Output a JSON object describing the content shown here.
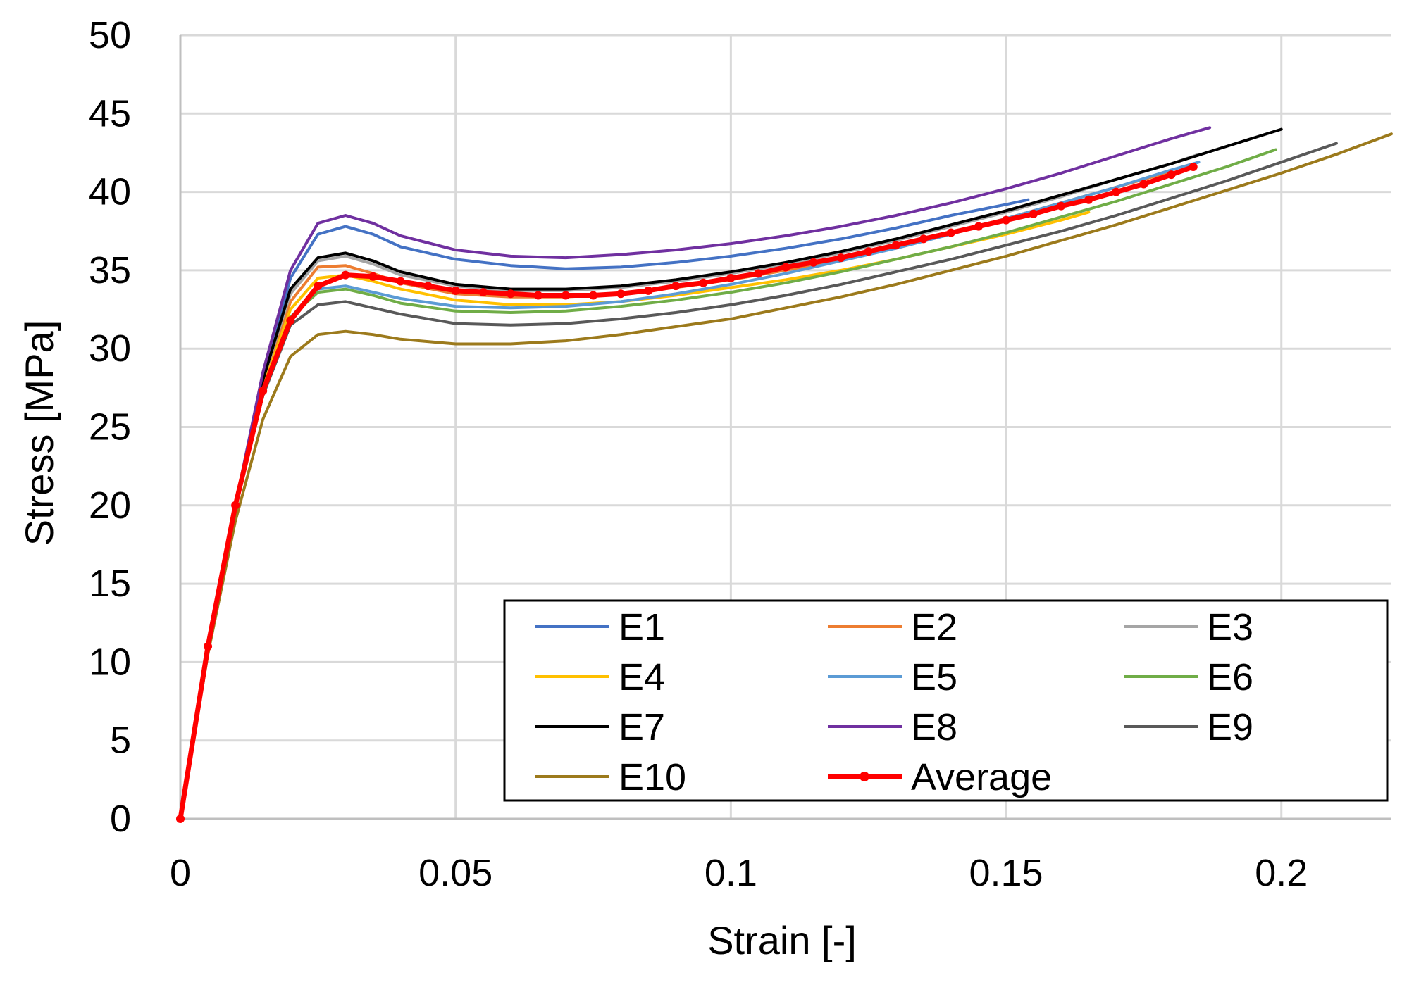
{
  "chart_data": {
    "type": "line",
    "title": "",
    "xlabel": "Strain [-]",
    "ylabel": "Stress [MPa]",
    "xlim": [
      0,
      0.22
    ],
    "ylim": [
      0,
      50
    ],
    "x_ticks": [
      0,
      0.05,
      0.1,
      0.15,
      0.2
    ],
    "x_tick_labels": [
      "0",
      "0.05",
      "0.1",
      "0.15",
      "0.2"
    ],
    "y_ticks": [
      0,
      5,
      10,
      15,
      20,
      25,
      30,
      35,
      40,
      45,
      50
    ],
    "y_tick_labels": [
      "0",
      "5",
      "10",
      "15",
      "20",
      "25",
      "30",
      "35",
      "40",
      "45",
      "50"
    ],
    "grid": true,
    "legend_position": "bottom-right",
    "series": [
      {
        "name": "E1",
        "color": "#4472C4",
        "markers": false,
        "x": [
          0,
          0.005,
          0.01,
          0.015,
          0.02,
          0.025,
          0.03,
          0.035,
          0.04,
          0.05,
          0.06,
          0.07,
          0.08,
          0.09,
          0.1,
          0.11,
          0.12,
          0.13,
          0.14,
          0.15,
          0.154
        ],
        "y": [
          0,
          11,
          20,
          28,
          34.5,
          37.3,
          37.8,
          37.3,
          36.5,
          35.7,
          35.3,
          35.1,
          35.2,
          35.5,
          35.9,
          36.4,
          37.0,
          37.7,
          38.5,
          39.2,
          39.5
        ]
      },
      {
        "name": "E2",
        "color": "#ED7D31",
        "markers": false,
        "x": [
          0,
          0.005,
          0.01,
          0.015,
          0.02,
          0.025,
          0.03,
          0.035,
          0.04,
          0.05,
          0.06,
          0.07,
          0.08,
          0.09,
          0.1,
          0.11,
          0.12,
          0.13,
          0.14,
          0.15,
          0.16,
          0.17,
          0.18
        ],
        "y": [
          0,
          11,
          20,
          27.5,
          33,
          35.2,
          35.3,
          34.8,
          34.2,
          33.5,
          33.3,
          33.3,
          33.5,
          33.9,
          34.4,
          35.0,
          35.7,
          36.5,
          37.4,
          38.3,
          39.3,
          40.3,
          41.3
        ]
      },
      {
        "name": "E3",
        "color": "#A5A5A5",
        "markers": false,
        "x": [
          0,
          0.005,
          0.01,
          0.015,
          0.02,
          0.025,
          0.03,
          0.035,
          0.04,
          0.05,
          0.06,
          0.07,
          0.08,
          0.09,
          0.1,
          0.11,
          0.12,
          0.13,
          0.14,
          0.15,
          0.16,
          0.17,
          0.18,
          0.185
        ],
        "y": [
          0,
          11,
          20,
          28,
          33.5,
          35.6,
          35.9,
          35.4,
          34.7,
          34.0,
          33.7,
          33.7,
          33.9,
          34.3,
          34.8,
          35.4,
          36.1,
          36.9,
          37.8,
          38.7,
          39.7,
          40.8,
          41.8,
          42.4
        ]
      },
      {
        "name": "E4",
        "color": "#FFC000",
        "markers": false,
        "x": [
          0,
          0.005,
          0.01,
          0.015,
          0.02,
          0.025,
          0.03,
          0.035,
          0.04,
          0.05,
          0.06,
          0.07,
          0.08,
          0.09,
          0.1,
          0.11,
          0.12,
          0.13,
          0.14,
          0.15,
          0.16,
          0.165
        ],
        "y": [
          0,
          11,
          20,
          27.5,
          32.5,
          34.5,
          34.7,
          34.3,
          33.8,
          33.1,
          32.8,
          32.8,
          33.0,
          33.4,
          33.9,
          34.4,
          35.0,
          35.7,
          36.5,
          37.3,
          38.2,
          38.7
        ]
      },
      {
        "name": "E5",
        "color": "#5B9BD5",
        "markers": false,
        "x": [
          0,
          0.005,
          0.01,
          0.015,
          0.02,
          0.025,
          0.03,
          0.035,
          0.04,
          0.05,
          0.06,
          0.07,
          0.08,
          0.09,
          0.1,
          0.11,
          0.12,
          0.13,
          0.14,
          0.15,
          0.16,
          0.17,
          0.18,
          0.185
        ],
        "y": [
          0,
          11,
          20,
          27,
          32,
          33.8,
          34.0,
          33.6,
          33.2,
          32.7,
          32.6,
          32.7,
          33.0,
          33.5,
          34.1,
          34.8,
          35.6,
          36.4,
          37.3,
          38.3,
          39.3,
          40.3,
          41.4,
          41.9
        ]
      },
      {
        "name": "E6",
        "color": "#70AD47",
        "markers": false,
        "x": [
          0,
          0.005,
          0.01,
          0.015,
          0.02,
          0.025,
          0.03,
          0.035,
          0.04,
          0.05,
          0.06,
          0.07,
          0.08,
          0.09,
          0.1,
          0.11,
          0.12,
          0.13,
          0.14,
          0.15,
          0.16,
          0.17,
          0.18,
          0.19,
          0.199
        ],
        "y": [
          0,
          11,
          20,
          27,
          32,
          33.6,
          33.8,
          33.4,
          32.9,
          32.4,
          32.3,
          32.4,
          32.7,
          33.1,
          33.6,
          34.2,
          34.9,
          35.7,
          36.5,
          37.4,
          38.4,
          39.4,
          40.5,
          41.6,
          42.7
        ]
      },
      {
        "name": "E7",
        "color": "#000000",
        "markers": false,
        "x": [
          0,
          0.005,
          0.01,
          0.015,
          0.02,
          0.025,
          0.03,
          0.035,
          0.04,
          0.05,
          0.06,
          0.07,
          0.08,
          0.09,
          0.1,
          0.11,
          0.12,
          0.13,
          0.14,
          0.15,
          0.16,
          0.17,
          0.18,
          0.19,
          0.2
        ],
        "y": [
          0,
          11,
          20,
          28,
          33.8,
          35.8,
          36.1,
          35.6,
          34.9,
          34.1,
          33.8,
          33.8,
          34.0,
          34.4,
          34.9,
          35.5,
          36.2,
          37.0,
          37.9,
          38.8,
          39.8,
          40.8,
          41.8,
          42.9,
          44.0
        ]
      },
      {
        "name": "E8",
        "color": "#7030A0",
        "markers": false,
        "x": [
          0,
          0.005,
          0.01,
          0.015,
          0.02,
          0.025,
          0.03,
          0.035,
          0.04,
          0.05,
          0.06,
          0.07,
          0.08,
          0.09,
          0.1,
          0.11,
          0.12,
          0.13,
          0.14,
          0.15,
          0.16,
          0.17,
          0.18,
          0.187
        ],
        "y": [
          0,
          11,
          20,
          28.5,
          35,
          38.0,
          38.5,
          38.0,
          37.2,
          36.3,
          35.9,
          35.8,
          36.0,
          36.3,
          36.7,
          37.2,
          37.8,
          38.5,
          39.3,
          40.2,
          41.2,
          42.3,
          43.4,
          44.1
        ]
      },
      {
        "name": "E9",
        "color": "#595959",
        "markers": false,
        "x": [
          0,
          0.005,
          0.01,
          0.015,
          0.02,
          0.025,
          0.03,
          0.035,
          0.04,
          0.05,
          0.06,
          0.07,
          0.08,
          0.09,
          0.1,
          0.11,
          0.12,
          0.13,
          0.14,
          0.15,
          0.16,
          0.17,
          0.18,
          0.19,
          0.2,
          0.21
        ],
        "y": [
          0,
          11,
          20,
          27,
          31.5,
          32.8,
          33.0,
          32.6,
          32.2,
          31.6,
          31.5,
          31.6,
          31.9,
          32.3,
          32.8,
          33.4,
          34.1,
          34.9,
          35.7,
          36.6,
          37.5,
          38.5,
          39.6,
          40.7,
          41.9,
          43.1
        ]
      },
      {
        "name": "E10",
        "color": "#9C7A1C",
        "markers": false,
        "x": [
          0,
          0.005,
          0.01,
          0.015,
          0.02,
          0.025,
          0.03,
          0.035,
          0.04,
          0.05,
          0.06,
          0.07,
          0.08,
          0.09,
          0.1,
          0.11,
          0.12,
          0.13,
          0.14,
          0.15,
          0.16,
          0.17,
          0.18,
          0.19,
          0.2,
          0.21,
          0.22
        ],
        "y": [
          0,
          10.5,
          19,
          25.5,
          29.5,
          30.9,
          31.1,
          30.9,
          30.6,
          30.3,
          30.3,
          30.5,
          30.9,
          31.4,
          31.9,
          32.6,
          33.3,
          34.1,
          35.0,
          35.9,
          36.9,
          37.9,
          39.0,
          40.1,
          41.2,
          42.4,
          43.7
        ]
      },
      {
        "name": "Average",
        "color": "#FF0000",
        "markers": true,
        "x": [
          0,
          0.005,
          0.01,
          0.015,
          0.02,
          0.025,
          0.03,
          0.035,
          0.04,
          0.045,
          0.05,
          0.055,
          0.06,
          0.065,
          0.07,
          0.075,
          0.08,
          0.085,
          0.09,
          0.095,
          0.1,
          0.105,
          0.11,
          0.115,
          0.12,
          0.125,
          0.13,
          0.135,
          0.14,
          0.145,
          0.15,
          0.155,
          0.16,
          0.165,
          0.17,
          0.175,
          0.18,
          0.184
        ],
        "y": [
          0,
          11,
          20,
          27.3,
          31.8,
          34.0,
          34.7,
          34.6,
          34.3,
          34.0,
          33.7,
          33.6,
          33.5,
          33.4,
          33.4,
          33.4,
          33.5,
          33.7,
          34.0,
          34.2,
          34.5,
          34.8,
          35.2,
          35.5,
          35.8,
          36.2,
          36.6,
          37.0,
          37.4,
          37.8,
          38.2,
          38.6,
          39.1,
          39.5,
          40.0,
          40.5,
          41.1,
          41.6
        ]
      }
    ]
  }
}
